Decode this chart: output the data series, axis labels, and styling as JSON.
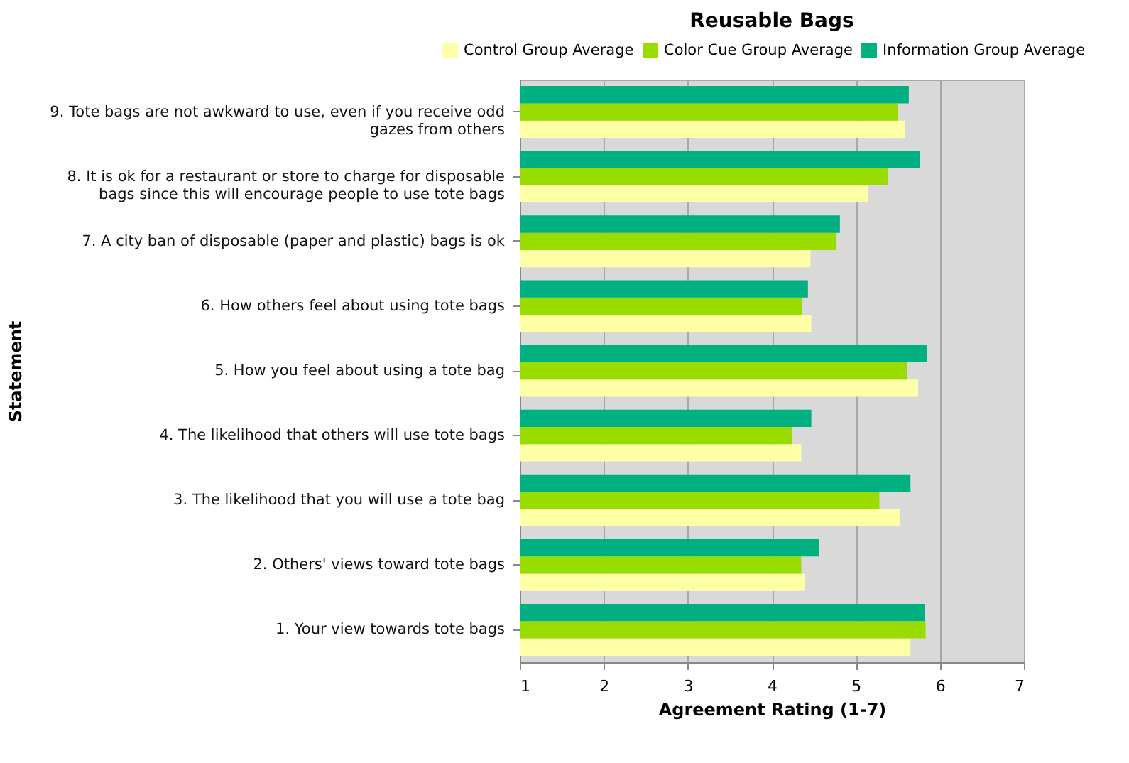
{
  "chart_data": {
    "type": "bar",
    "orientation": "horizontal",
    "title": "Reusable Bags",
    "xlabel": "Agreement Rating (1-7)",
    "ylabel": "Statement",
    "categories": [
      "9. Tote bags are not awkward to use, even if you receive odd gazes from others",
      "8. It is ok for a restaurant or store to charge for disposable bags since this will encourage people to use tote bags",
      "7. A city ban of disposable (paper and plastic) bags is ok",
      "6. How others feel about using tote bags",
      "5. How you feel about using a tote bag",
      "4. The likelihood that others will use tote bags",
      "3. The likelihood that you will use a tote bag",
      "2. Others' views toward tote bags",
      "1. Your view towards tote bags"
    ],
    "series": [
      {
        "name": "Control Group Average",
        "color": "#ffffa8",
        "values": [
          5.58,
          5.15,
          4.46,
          4.47,
          5.74,
          4.35,
          5.52,
          4.39,
          5.65
        ]
      },
      {
        "name": "Color Cue Group Average",
        "color": "#99dd00",
        "values": [
          5.5,
          5.38,
          4.77,
          4.36,
          5.61,
          4.24,
          5.28,
          4.35,
          5.83
        ]
      },
      {
        "name": "Information Group Average",
        "color": "#00b080",
        "values": [
          5.63,
          5.76,
          4.81,
          4.43,
          5.85,
          4.47,
          5.65,
          4.56,
          5.82
        ]
      }
    ],
    "xlim": [
      1,
      7
    ],
    "xticks": [
      1,
      2,
      3,
      4,
      5,
      6,
      7
    ],
    "grid": "x",
    "legend": "top"
  }
}
